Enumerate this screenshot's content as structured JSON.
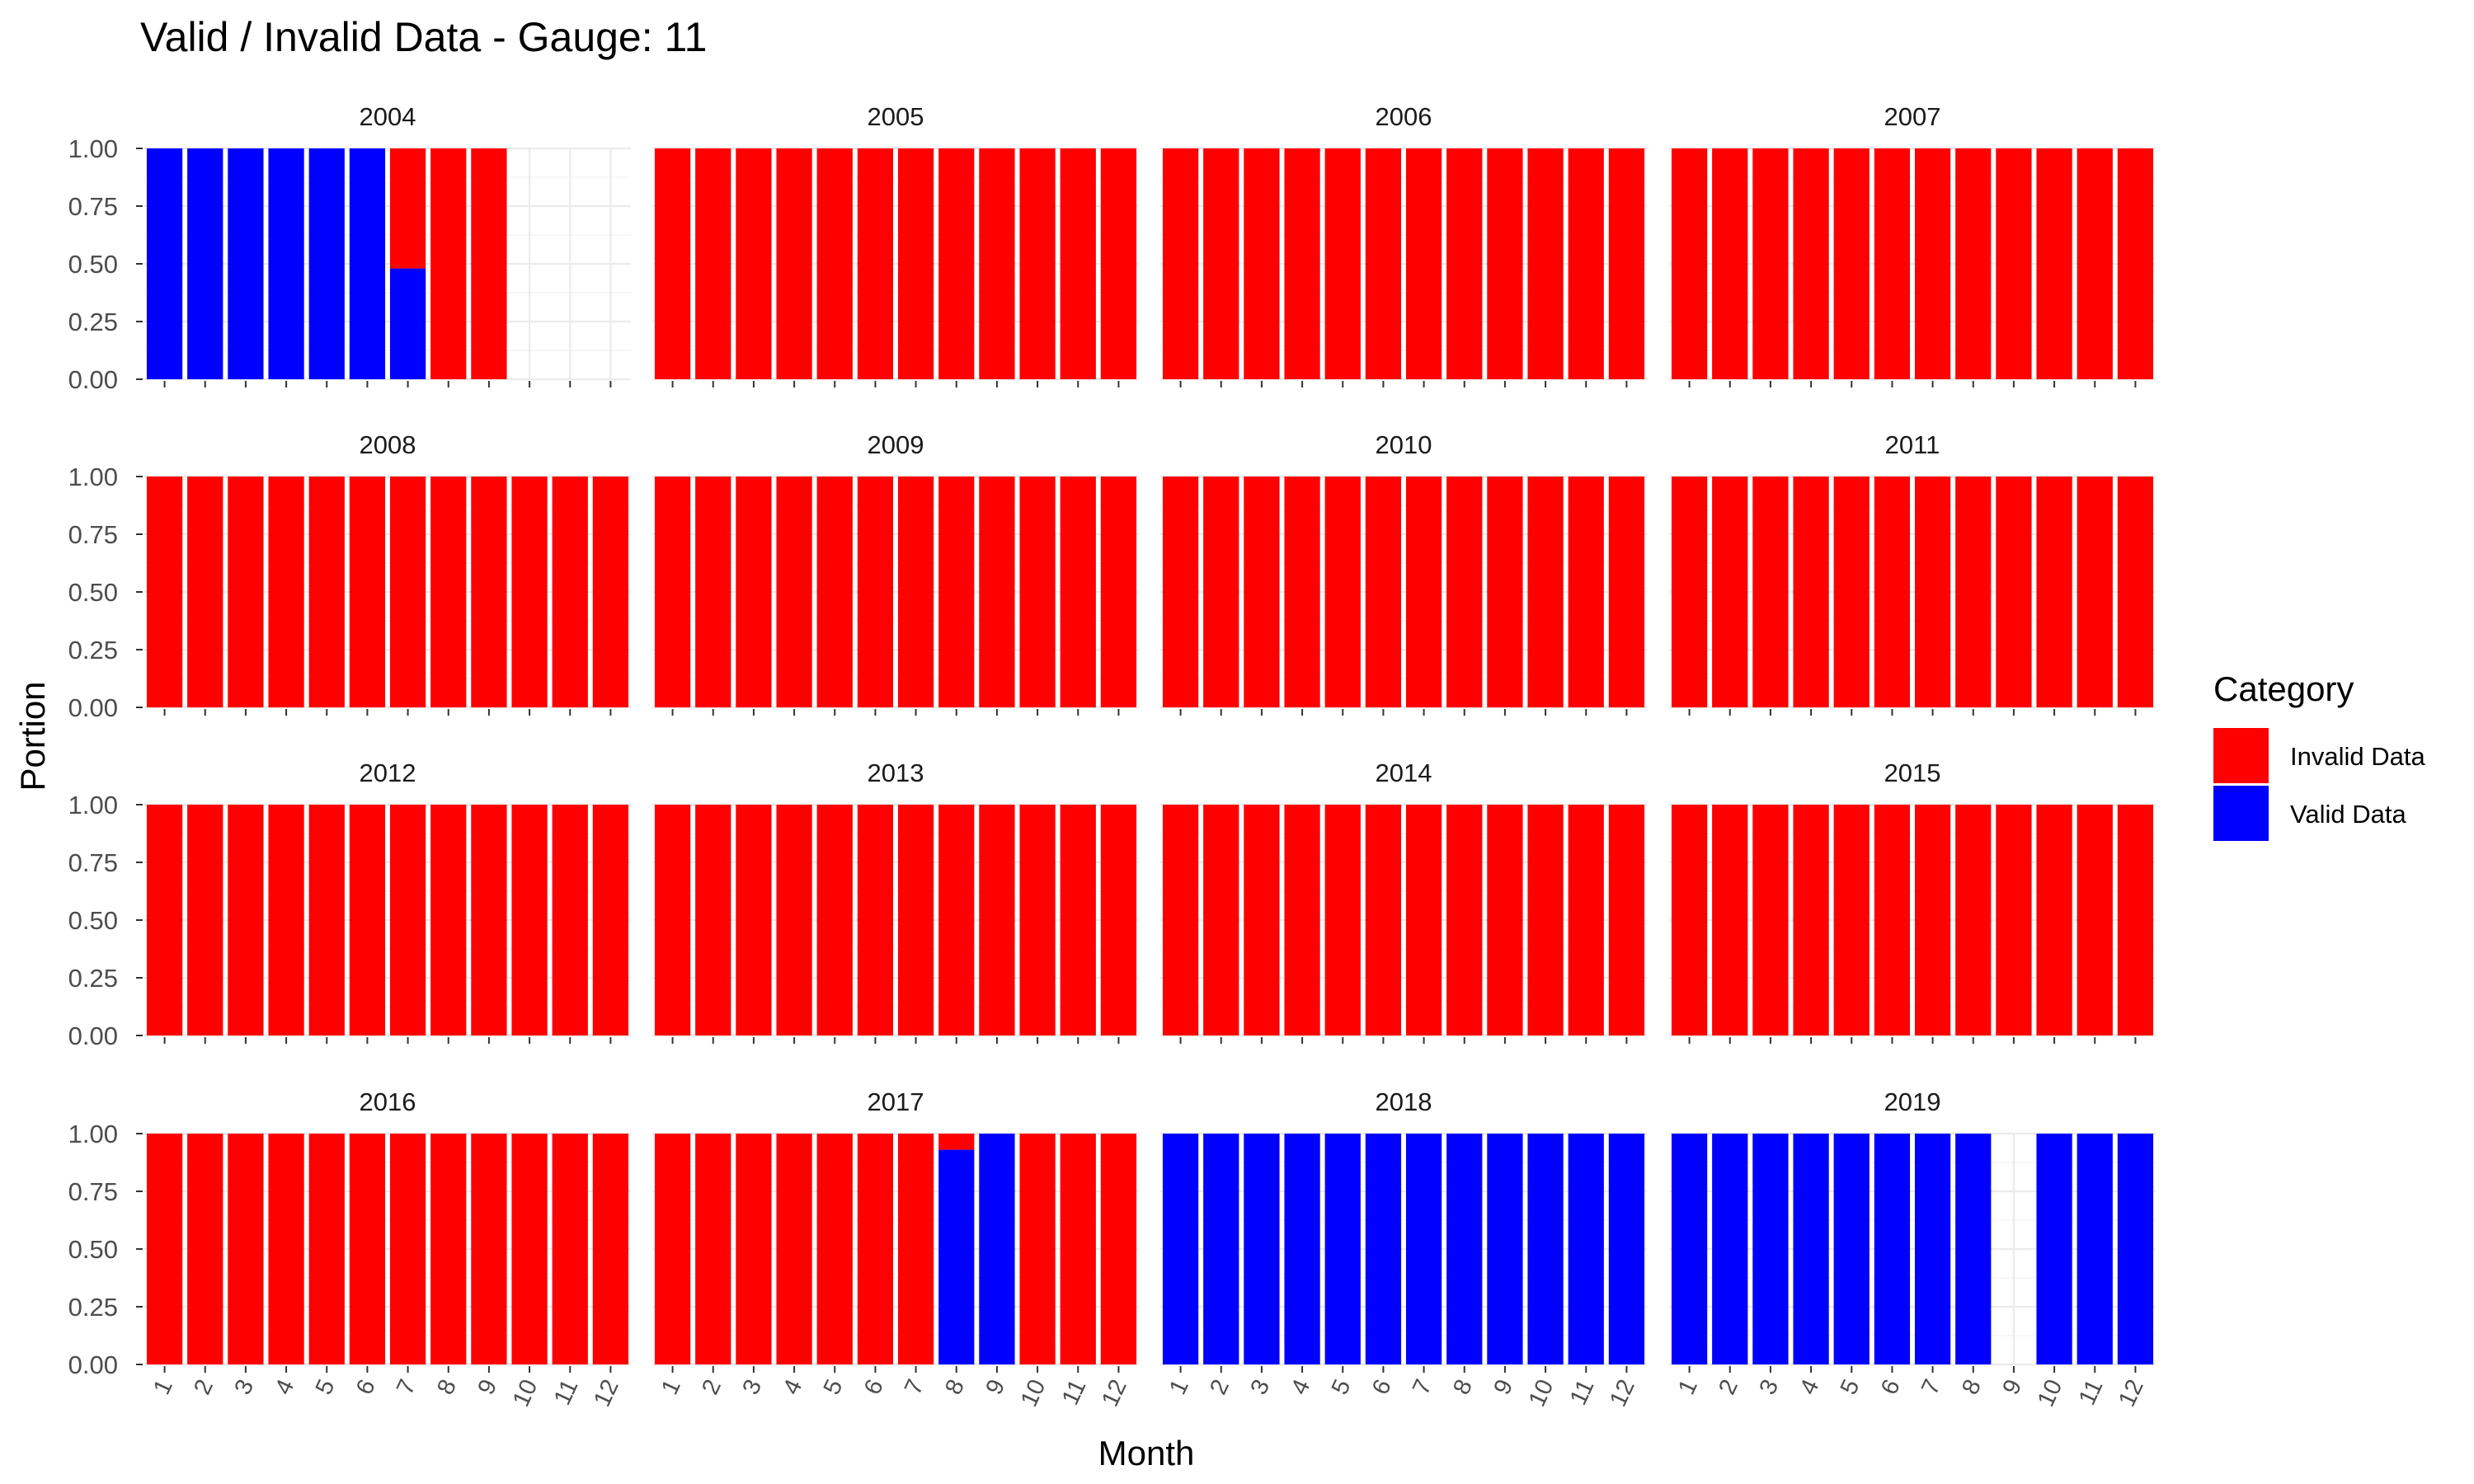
{
  "chart_data": {
    "type": "bar",
    "stacked": true,
    "faceted": true,
    "title": "Valid / Invalid Data - Gauge: 11",
    "xlabel": "Month",
    "ylabel": "Portion",
    "ylim": [
      0,
      1
    ],
    "yticks": [
      "0.00",
      "0.25",
      "0.50",
      "0.75",
      "1.00"
    ],
    "categories": [
      "1",
      "2",
      "3",
      "4",
      "5",
      "6",
      "7",
      "8",
      "9",
      "10",
      "11",
      "12"
    ],
    "legend": {
      "title": "Category",
      "position": "right",
      "entries": [
        {
          "name": "Invalid Data",
          "color": "#ff0000"
        },
        {
          "name": "Valid Data",
          "color": "#0000ff"
        }
      ]
    },
    "series_colors": {
      "valid": "#0000ff",
      "invalid": "#ff0000"
    },
    "grid": true,
    "facets": [
      {
        "label": "2004",
        "valid": [
          1,
          1,
          1,
          1,
          1,
          1,
          0.48,
          0,
          0,
          null,
          null,
          null
        ]
      },
      {
        "label": "2005",
        "valid": [
          0,
          0,
          0,
          0,
          0,
          0,
          0,
          0,
          0,
          0,
          0,
          0
        ]
      },
      {
        "label": "2006",
        "valid": [
          0,
          0,
          0,
          0,
          0,
          0,
          0,
          0,
          0,
          0,
          0,
          0
        ]
      },
      {
        "label": "2007",
        "valid": [
          0,
          0,
          0,
          0,
          0,
          0,
          0,
          0,
          0,
          0,
          0,
          0
        ]
      },
      {
        "label": "2008",
        "valid": [
          0,
          0,
          0,
          0,
          0,
          0,
          0,
          0,
          0,
          0,
          0,
          0
        ]
      },
      {
        "label": "2009",
        "valid": [
          0,
          0,
          0,
          0,
          0,
          0,
          0,
          0,
          0,
          0,
          0,
          0
        ]
      },
      {
        "label": "2010",
        "valid": [
          0,
          0,
          0,
          0,
          0,
          0,
          0,
          0,
          0,
          0,
          0,
          0
        ]
      },
      {
        "label": "2011",
        "valid": [
          0,
          0,
          0,
          0,
          0,
          0,
          0,
          0,
          0,
          0,
          0,
          0
        ]
      },
      {
        "label": "2012",
        "valid": [
          0,
          0,
          0,
          0,
          0,
          0,
          0,
          0,
          0,
          0,
          0,
          0
        ]
      },
      {
        "label": "2013",
        "valid": [
          0,
          0,
          0,
          0,
          0,
          0,
          0,
          0,
          0,
          0,
          0,
          0
        ]
      },
      {
        "label": "2014",
        "valid": [
          0,
          0,
          0,
          0,
          0,
          0,
          0,
          0,
          0,
          0,
          0,
          0
        ]
      },
      {
        "label": "2015",
        "valid": [
          0,
          0,
          0,
          0,
          0,
          0,
          0,
          0,
          0,
          0,
          0,
          0
        ]
      },
      {
        "label": "2016",
        "valid": [
          0,
          0,
          0,
          0,
          0,
          0,
          0,
          0,
          0,
          0,
          0,
          0
        ]
      },
      {
        "label": "2017",
        "valid": [
          0,
          0,
          0,
          0,
          0,
          0,
          0,
          0.93,
          1,
          0,
          0,
          0
        ]
      },
      {
        "label": "2018",
        "valid": [
          1,
          1,
          1,
          1,
          1,
          1,
          1,
          1,
          1,
          1,
          1,
          1
        ]
      },
      {
        "label": "2019",
        "valid": [
          1,
          1,
          1,
          1,
          1,
          1,
          1,
          1,
          null,
          1,
          1,
          1
        ]
      }
    ]
  }
}
